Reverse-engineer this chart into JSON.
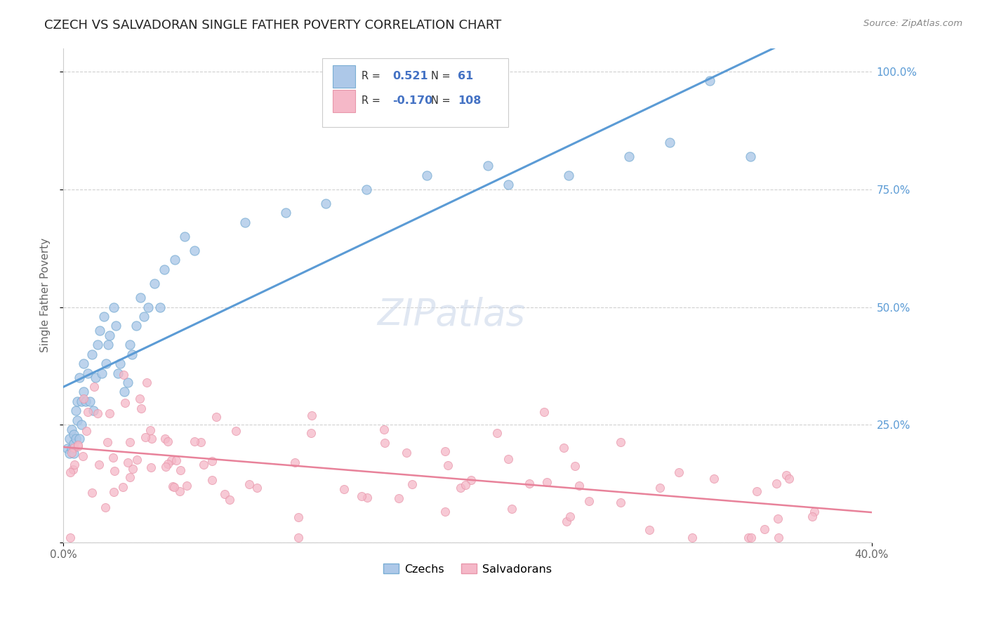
{
  "title": "CZECH VS SALVADORAN SINGLE FATHER POVERTY CORRELATION CHART",
  "source": "Source: ZipAtlas.com",
  "ylabel": "Single Father Poverty",
  "legend_entry1": {
    "label": "Czechs",
    "R": "0.521",
    "N": "61"
  },
  "legend_entry2": {
    "label": "Salvadorans",
    "R": "-0.170",
    "N": "108"
  },
  "trend_color1": "#5b9bd5",
  "trend_color2": "#e8829a",
  "dot_color1": "#adc8e8",
  "dot_color2": "#f5b8c8",
  "dot_edge1": "#7aaed4",
  "dot_edge2": "#e896aa",
  "legend_box_color": "#a8c8e8",
  "legend_box_color2": "#f5b8c8",
  "ytick_color": "#5b9bd5",
  "watermark": "ZIPatlas",
  "watermark_color": "#ccd8ea",
  "background": "#ffffff",
  "grid_color": "#d0d0d0",
  "title_color": "#222222",
  "source_color": "#888888",
  "ylabel_color": "#666666"
}
